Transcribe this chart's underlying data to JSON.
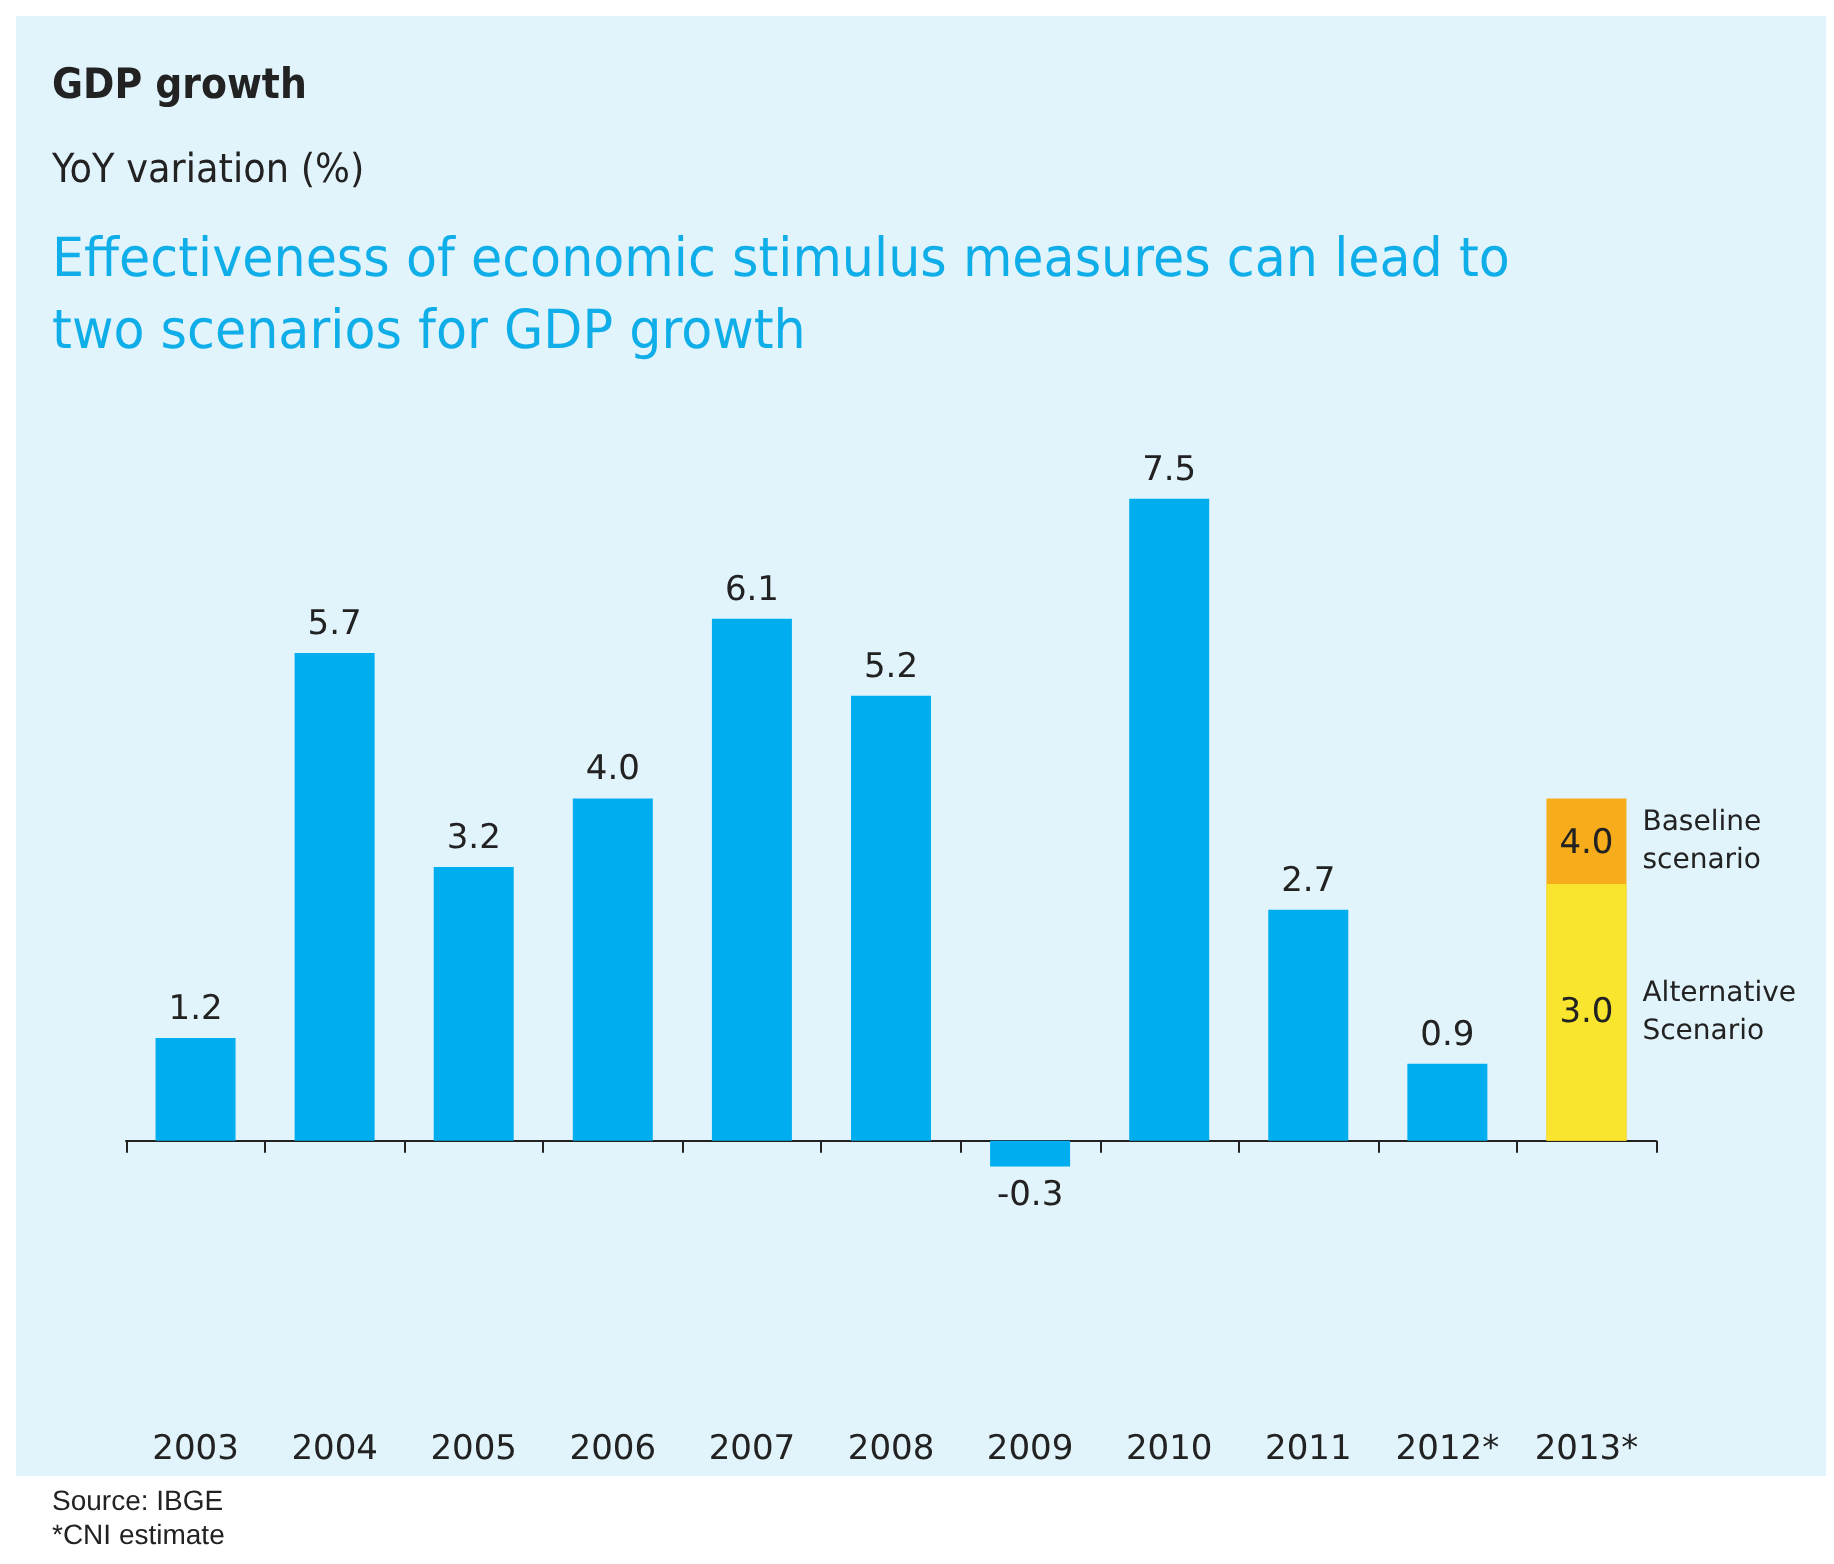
{
  "chart_data": {
    "type": "bar",
    "title": "GDP growth",
    "subtitle": "YoY variation (%)",
    "categories": [
      "2003",
      "2004",
      "2005",
      "2006",
      "2007",
      "2008",
      "2009",
      "2010",
      "2011",
      "2012*",
      "2013*"
    ],
    "series": [
      {
        "color": "#00aeef",
        "values": [
          1.2,
          5.7,
          3.2,
          4.0,
          6.1,
          5.2,
          -0.3,
          7.5,
          2.7,
          0.9,
          null
        ],
        "value_labels": [
          "1.2",
          "5.7",
          "3.2",
          "4.0",
          "6.1",
          "5.2",
          "-0.3",
          "7.5",
          "2.7",
          "0.9",
          null
        ]
      },
      {
        "name": "Baseline scenario",
        "color": "#f7ac1b",
        "values": [
          null,
          null,
          null,
          null,
          null,
          null,
          null,
          null,
          null,
          null,
          4.0
        ],
        "value_labels": [
          null,
          null,
          null,
          null,
          null,
          null,
          null,
          null,
          null,
          null,
          "4.0"
        ]
      },
      {
        "name": "Alternative Scenario",
        "color": "#f9e52d",
        "values": [
          null,
          null,
          null,
          null,
          null,
          null,
          null,
          null,
          null,
          null,
          3.0
        ],
        "value_labels": [
          null,
          null,
          null,
          null,
          null,
          null,
          null,
          null,
          null,
          null,
          "3.0"
        ]
      }
    ],
    "annotations": [
      "Effectiveness of economic stimulus measures can lead to two scenarios for GDP growth",
      "Source: IBGE",
      "*CNI estimate"
    ],
    "legend": false
  }
}
